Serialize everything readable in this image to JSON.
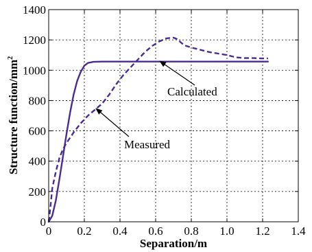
{
  "chart_data": {
    "type": "line",
    "xlabel": "Separation/m",
    "ylabel": "Structure function/mm",
    "ylabel_superscript": "2",
    "xlim": [
      0,
      1.4
    ],
    "ylim": [
      0,
      1400
    ],
    "xticks": [
      "0",
      "0.2",
      "0.4",
      "0.6",
      "0.8",
      "1.0",
      "1.2",
      "1.4"
    ],
    "yticks": [
      "0",
      "200",
      "400",
      "600",
      "800",
      "1000",
      "1200",
      "1400"
    ],
    "grid": true,
    "colors": {
      "series": "#4a2a94",
      "axes": "#000000"
    },
    "series": [
      {
        "name": "Calculated",
        "style": "solid",
        "x": [
          0,
          0.02,
          0.04,
          0.06,
          0.08,
          0.1,
          0.12,
          0.14,
          0.16,
          0.18,
          0.2,
          0.22,
          0.25,
          0.3,
          0.4,
          0.6,
          0.8,
          1.0,
          1.2,
          1.23
        ],
        "y": [
          0,
          40,
          140,
          280,
          430,
          580,
          720,
          840,
          930,
          990,
          1030,
          1048,
          1055,
          1057,
          1057,
          1057,
          1057,
          1057,
          1057,
          1057
        ]
      },
      {
        "name": "Measured",
        "style": "dashed",
        "x": [
          0,
          0.01,
          0.02,
          0.04,
          0.06,
          0.08,
          0.1,
          0.14,
          0.18,
          0.22,
          0.26,
          0.3,
          0.34,
          0.38,
          0.42,
          0.46,
          0.5,
          0.54,
          0.58,
          0.62,
          0.66,
          0.7,
          0.72,
          0.74,
          0.76,
          0.8,
          0.85,
          0.9,
          0.95,
          1.0,
          1.05,
          1.1,
          1.15,
          1.2,
          1.23
        ],
        "y": [
          0,
          100,
          220,
          330,
          420,
          480,
          520,
          590,
          650,
          700,
          740,
          780,
          840,
          910,
          970,
          1020,
          1070,
          1120,
          1160,
          1190,
          1210,
          1215,
          1205,
          1185,
          1165,
          1150,
          1135,
          1120,
          1110,
          1100,
          1085,
          1080,
          1080,
          1078,
          1078
        ]
      }
    ],
    "annotations": [
      {
        "text": "Calculated",
        "points_to": {
          "x": 0.62,
          "y": 1057
        }
      },
      {
        "text": "Measured",
        "points_to": {
          "x": 0.26,
          "y": 740
        }
      }
    ]
  }
}
